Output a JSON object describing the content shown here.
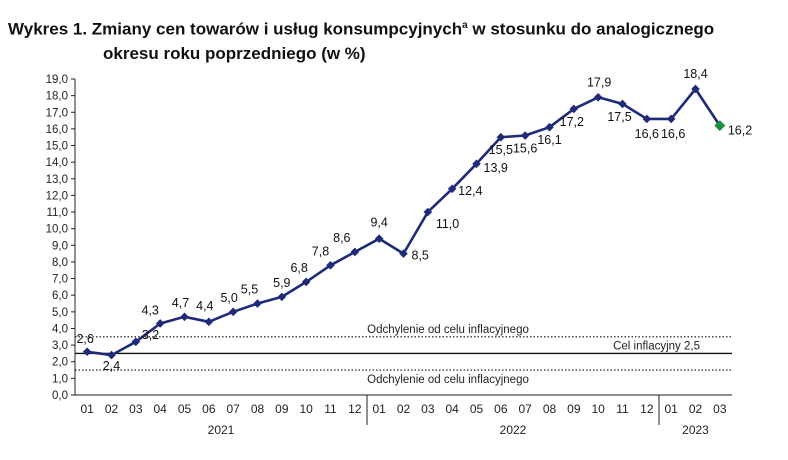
{
  "title": {
    "line1_prefix": "Wykres 1. Zmiany cen towarów i usług konsumpcyjnych",
    "superscript": "a",
    "line1_suffix": " w stosunku do analogicznego",
    "line2": "okresu roku poprzedniego (w %)"
  },
  "chart_data": {
    "type": "line",
    "title": "Wykres 1. Zmiany cen towarów i usług konsumpcyjnych w stosunku do analogicznego okresu roku poprzedniego (w %)",
    "ylim": [
      0,
      19
    ],
    "ytick_step": 1,
    "ytick_labels": [
      "0,0",
      "1,0",
      "2,0",
      "3,0",
      "4,0",
      "5,0",
      "6,0",
      "7,0",
      "8,0",
      "9,0",
      "10,0",
      "11,0",
      "12,0",
      "13,0",
      "14,0",
      "15,0",
      "16,0",
      "17,0",
      "18,0",
      "19,0"
    ],
    "months": [
      "01",
      "02",
      "03",
      "04",
      "05",
      "06",
      "07",
      "08",
      "09",
      "10",
      "11",
      "12",
      "01",
      "02",
      "03",
      "04",
      "05",
      "06",
      "07",
      "08",
      "09",
      "10",
      "11",
      "12",
      "01",
      "02",
      "03"
    ],
    "years": [
      {
        "label": "2021",
        "start": 0,
        "end": 11
      },
      {
        "label": "2022",
        "start": 12,
        "end": 23
      },
      {
        "label": "2023",
        "start": 24,
        "end": 26
      }
    ],
    "series": [
      {
        "values": [
          2.6,
          2.4,
          3.2,
          4.3,
          4.7,
          4.4,
          5.0,
          5.5,
          5.9,
          6.8,
          7.8,
          8.6,
          9.4,
          8.5,
          11.0,
          12.4,
          13.9,
          15.5,
          15.6,
          16.1,
          17.2,
          17.9,
          17.5,
          16.6,
          16.6,
          18.4,
          16.2
        ],
        "labels": [
          "2,6",
          "2,4",
          "3,2",
          "4,3",
          "4,7",
          "4,4",
          "5,0",
          "5,5",
          "5,9",
          "6,8",
          "7,8",
          "8,6",
          "9,4",
          "8,5",
          "11,0",
          "12,4",
          "13,9",
          "15,5",
          "15,6",
          "16,1",
          "17,2",
          "17,9",
          "17,5",
          "16,6",
          "16,6",
          "18,4",
          "16,2"
        ],
        "color": "#1f2a7a",
        "last_point_color": "#1e8f3c"
      }
    ],
    "reference_lines": [
      {
        "label": "Odchylenie od celu inflacyjnego",
        "value": 3.5,
        "style": "dotted"
      },
      {
        "label": "Cel inflacyjny 2,5",
        "value": 2.5,
        "style": "solid"
      },
      {
        "label": "Odchylenie od celu inflacyjnego",
        "value": 1.5,
        "style": "dotted"
      }
    ],
    "grid": false
  }
}
